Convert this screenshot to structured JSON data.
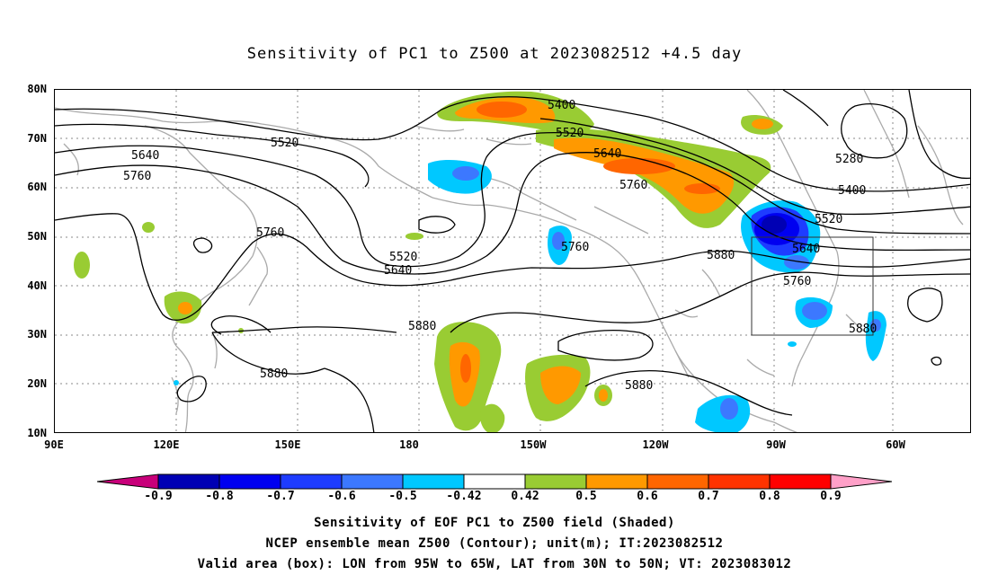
{
  "title": "Sensitivity of PC1 to Z500 at 2023082512 +4.5 day",
  "lat_labels": [
    "80N",
    "70N",
    "60N",
    "50N",
    "40N",
    "30N",
    "20N",
    "10N"
  ],
  "lon_labels": [
    "90E",
    "120E",
    "150E",
    "180",
    "150W",
    "120W",
    "90W",
    "60W"
  ],
  "contour_labels": [
    "5400",
    "5520",
    "5520",
    "5640",
    "5640",
    "5760",
    "5760",
    "5760",
    "5880",
    "5880",
    "5880",
    "5880",
    "5520",
    "5640",
    "5760",
    "5280",
    "5400",
    "5520",
    "5640",
    "5760",
    "5880"
  ],
  "colorbar": {
    "labels": [
      "-0.9",
      "-0.8",
      "-0.7",
      "-0.6",
      "-0.5",
      "-0.42",
      "0.42",
      "0.5",
      "0.6",
      "0.7",
      "0.8",
      "0.9"
    ],
    "colors": [
      "#0000b4",
      "#0000f0",
      "#1e3cff",
      "#3c78ff",
      "#00c8ff",
      "#ffffff",
      "#99cc33",
      "#ff9900",
      "#ff6600",
      "#ff3300",
      "#ff0000"
    ],
    "low_end_color": "#c8007a",
    "high_end_color": "#ffa0c8"
  },
  "captions": [
    "Sensitivity of EOF PC1 to Z500 field (Shaded)",
    "NCEP ensemble mean Z500 (Contour); unit(m); IT:2023082512",
    "Valid area (box): LON from 95W to 65W, LAT from 30N to 50N; VT: 2023083012"
  ],
  "valid_box": {
    "lon_west": "95W",
    "lon_east": "65W",
    "lat_south": "30N",
    "lat_north": "50N"
  }
}
